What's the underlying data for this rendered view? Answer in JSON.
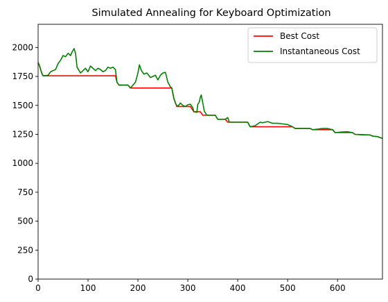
{
  "chart_data": {
    "type": "line",
    "title": "Simulated Annealing for Keyboard Optimization",
    "xlabel": "",
    "ylabel": "",
    "xlim": [
      0,
      690
    ],
    "ylim": [
      0,
      2200
    ],
    "xticks": [
      0,
      100,
      200,
      300,
      400,
      500,
      600
    ],
    "yticks": [
      0,
      250,
      500,
      750,
      1000,
      1250,
      1500,
      1750,
      2000
    ],
    "grid": false,
    "legend_position": "upper right",
    "series": [
      {
        "name": "Best Cost",
        "color": "#ff0000",
        "points": [
          [
            0,
            1870
          ],
          [
            3,
            1840
          ],
          [
            5,
            1810
          ],
          [
            8,
            1770
          ],
          [
            10,
            1755
          ],
          [
            155,
            1755
          ],
          [
            158,
            1700
          ],
          [
            162,
            1675
          ],
          [
            180,
            1675
          ],
          [
            185,
            1650
          ],
          [
            268,
            1650
          ],
          [
            272,
            1560
          ],
          [
            278,
            1490
          ],
          [
            305,
            1490
          ],
          [
            312,
            1445
          ],
          [
            325,
            1445
          ],
          [
            330,
            1415
          ],
          [
            355,
            1415
          ],
          [
            360,
            1380
          ],
          [
            375,
            1380
          ],
          [
            380,
            1355
          ],
          [
            420,
            1355
          ],
          [
            425,
            1315
          ],
          [
            510,
            1315
          ],
          [
            515,
            1300
          ],
          [
            545,
            1300
          ],
          [
            550,
            1290
          ],
          [
            590,
            1290
          ],
          [
            595,
            1265
          ],
          [
            630,
            1265
          ],
          [
            635,
            1250
          ],
          [
            665,
            1245
          ],
          [
            670,
            1235
          ],
          [
            680,
            1230
          ],
          [
            685,
            1222
          ],
          [
            690,
            1215
          ]
        ]
      },
      {
        "name": "Instantaneous Cost",
        "color": "#008000",
        "points": [
          [
            0,
            1870
          ],
          [
            3,
            1840
          ],
          [
            5,
            1810
          ],
          [
            8,
            1770
          ],
          [
            10,
            1755
          ],
          [
            20,
            1760
          ],
          [
            25,
            1790
          ],
          [
            30,
            1800
          ],
          [
            35,
            1810
          ],
          [
            40,
            1860
          ],
          [
            45,
            1890
          ],
          [
            50,
            1930
          ],
          [
            55,
            1920
          ],
          [
            60,
            1950
          ],
          [
            65,
            1930
          ],
          [
            68,
            1960
          ],
          [
            72,
            1990
          ],
          [
            75,
            1950
          ],
          [
            78,
            1830
          ],
          [
            82,
            1800
          ],
          [
            85,
            1780
          ],
          [
            90,
            1800
          ],
          [
            95,
            1820
          ],
          [
            100,
            1790
          ],
          [
            105,
            1840
          ],
          [
            110,
            1820
          ],
          [
            115,
            1800
          ],
          [
            120,
            1820
          ],
          [
            125,
            1810
          ],
          [
            130,
            1790
          ],
          [
            135,
            1800
          ],
          [
            140,
            1830
          ],
          [
            145,
            1820
          ],
          [
            150,
            1830
          ],
          [
            155,
            1810
          ],
          [
            158,
            1700
          ],
          [
            162,
            1675
          ],
          [
            180,
            1675
          ],
          [
            185,
            1650
          ],
          [
            195,
            1700
          ],
          [
            200,
            1780
          ],
          [
            203,
            1850
          ],
          [
            207,
            1800
          ],
          [
            212,
            1770
          ],
          [
            218,
            1780
          ],
          [
            225,
            1740
          ],
          [
            235,
            1760
          ],
          [
            240,
            1720
          ],
          [
            245,
            1760
          ],
          [
            250,
            1780
          ],
          [
            255,
            1785
          ],
          [
            260,
            1700
          ],
          [
            265,
            1660
          ],
          [
            268,
            1650
          ],
          [
            272,
            1560
          ],
          [
            276,
            1510
          ],
          [
            280,
            1490
          ],
          [
            285,
            1520
          ],
          [
            290,
            1500
          ],
          [
            295,
            1490
          ],
          [
            300,
            1505
          ],
          [
            305,
            1510
          ],
          [
            310,
            1480
          ],
          [
            312,
            1445
          ],
          [
            318,
            1440
          ],
          [
            320,
            1510
          ],
          [
            323,
            1530
          ],
          [
            325,
            1570
          ],
          [
            327,
            1590
          ],
          [
            330,
            1520
          ],
          [
            333,
            1450
          ],
          [
            338,
            1415
          ],
          [
            355,
            1415
          ],
          [
            360,
            1380
          ],
          [
            375,
            1380
          ],
          [
            380,
            1395
          ],
          [
            383,
            1355
          ],
          [
            420,
            1355
          ],
          [
            425,
            1315
          ],
          [
            435,
            1325
          ],
          [
            440,
            1340
          ],
          [
            445,
            1355
          ],
          [
            450,
            1350
          ],
          [
            460,
            1360
          ],
          [
            470,
            1345
          ],
          [
            480,
            1345
          ],
          [
            490,
            1340
          ],
          [
            500,
            1335
          ],
          [
            505,
            1325
          ],
          [
            510,
            1315
          ],
          [
            515,
            1300
          ],
          [
            545,
            1300
          ],
          [
            550,
            1290
          ],
          [
            560,
            1295
          ],
          [
            570,
            1300
          ],
          [
            580,
            1300
          ],
          [
            590,
            1290
          ],
          [
            595,
            1265
          ],
          [
            610,
            1270
          ],
          [
            620,
            1272
          ],
          [
            630,
            1265
          ],
          [
            635,
            1250
          ],
          [
            650,
            1245
          ],
          [
            665,
            1245
          ],
          [
            670,
            1235
          ],
          [
            680,
            1230
          ],
          [
            685,
            1222
          ],
          [
            690,
            1215
          ]
        ]
      }
    ]
  }
}
